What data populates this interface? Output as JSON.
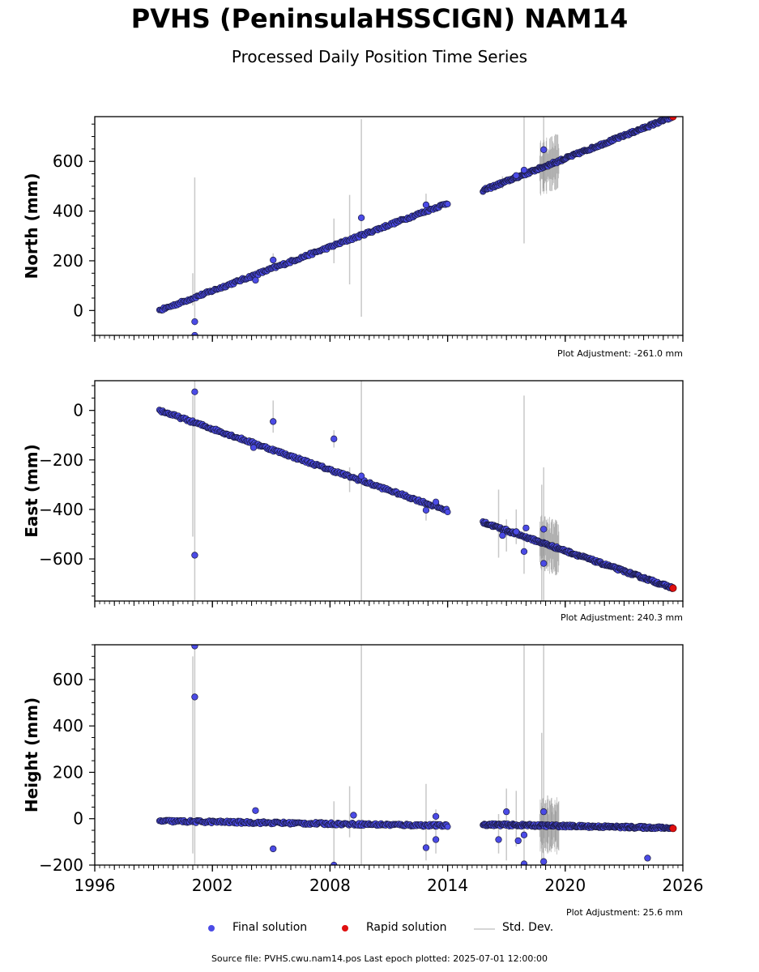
{
  "title": "PVHS (PeninsulaHSSCIGN) NAM14",
  "subtitle": "Processed Daily Position Time Series",
  "source_note": "Source file: PVHS.cwu.nam14.pos  Last epoch plotted: 2025-07-01 12:00:00",
  "legend": {
    "final": "Final solution",
    "rapid": "Rapid solution",
    "std": "Std. Dev."
  },
  "colors": {
    "final": "#4b4be6",
    "final_edge": "#1a1a40",
    "rapid": "#e01010",
    "std": "#c8c8c8"
  },
  "chart_data": [
    {
      "type": "scatter",
      "ylabel": "North (mm)",
      "adjustment": "Plot Adjustment: -261.0 mm",
      "xlim": [
        1996,
        2026
      ],
      "ylim": [
        -100,
        780
      ],
      "yticks": [
        0,
        200,
        400,
        600
      ],
      "xticks": [
        1996,
        2002,
        2008,
        2014,
        2020,
        2026
      ],
      "show_xticklabels": false,
      "segments": [
        {
          "x": [
            1999.3,
            2014.0
          ],
          "y": [
            0,
            432
          ]
        },
        {
          "x": [
            2015.8,
            2025.5
          ],
          "y": [
            483,
            780
          ]
        }
      ],
      "outliers": [
        {
          "x": 2001.1,
          "y": -45
        },
        {
          "x": 2001.1,
          "y": -100
        },
        {
          "x": 2004.2,
          "y": 122
        },
        {
          "x": 2005.1,
          "y": 203
        },
        {
          "x": 2009.6,
          "y": 373
        },
        {
          "x": 2012.9,
          "y": 425
        },
        {
          "x": 2017.9,
          "y": 565
        },
        {
          "x": 2018.9,
          "y": 647
        },
        {
          "x": 2017.5,
          "y": 543
        }
      ],
      "errorbars": [
        {
          "x": 2001.1,
          "lo": -60,
          "hi": 535
        },
        {
          "x": 2001.0,
          "lo": 20,
          "hi": 150
        },
        {
          "x": 2008.2,
          "lo": 190,
          "hi": 370
        },
        {
          "x": 2009.0,
          "lo": 105,
          "hi": 465
        },
        {
          "x": 2009.6,
          "lo": -25,
          "hi": 770
        },
        {
          "x": 2005.1,
          "lo": 175,
          "hi": 230
        },
        {
          "x": 2012.9,
          "lo": 380,
          "hi": 470
        },
        {
          "x": 2017.9,
          "lo": 270,
          "hi": 780
        },
        {
          "x": 2018.9,
          "lo": 480,
          "hi": 780
        },
        {
          "x": 2016.8,
          "lo": 490,
          "hi": 540
        }
      ],
      "rapid": [
        {
          "x": 2025.5,
          "y": 780
        }
      ]
    },
    {
      "type": "scatter",
      "ylabel": "East (mm)",
      "adjustment": "Plot Adjustment: 240.3 mm",
      "xlim": [
        1996,
        2026
      ],
      "ylim": [
        -770,
        120
      ],
      "yticks": [
        0,
        -200,
        -400,
        -600
      ],
      "xticks": [
        1996,
        2002,
        2008,
        2014,
        2020,
        2026
      ],
      "show_xticklabels": false,
      "segments": [
        {
          "x": [
            1999.3,
            2014.0
          ],
          "y": [
            0,
            -405
          ]
        },
        {
          "x": [
            2015.8,
            2025.5
          ],
          "y": [
            -452,
            -718
          ]
        }
      ],
      "outliers": [
        {
          "x": 2001.1,
          "y": 75
        },
        {
          "x": 2001.1,
          "y": -585
        },
        {
          "x": 2005.1,
          "y": -45
        },
        {
          "x": 2008.2,
          "y": -115
        },
        {
          "x": 2009.6,
          "y": -265
        },
        {
          "x": 2012.9,
          "y": -403
        },
        {
          "x": 2013.4,
          "y": -370
        },
        {
          "x": 2016.8,
          "y": -505
        },
        {
          "x": 2017.9,
          "y": -570
        },
        {
          "x": 2018.0,
          "y": -475
        },
        {
          "x": 2018.9,
          "y": -618
        },
        {
          "x": 2018.9,
          "y": -480
        },
        {
          "x": 2017.5,
          "y": -490
        },
        {
          "x": 2004.1,
          "y": -150
        }
      ],
      "errorbars": [
        {
          "x": 2001.1,
          "lo": -770,
          "hi": 120
        },
        {
          "x": 2001.0,
          "lo": -510,
          "hi": 60
        },
        {
          "x": 2005.1,
          "lo": -90,
          "hi": 40
        },
        {
          "x": 2008.2,
          "lo": -150,
          "hi": -80
        },
        {
          "x": 2009.0,
          "lo": -330,
          "hi": -230
        },
        {
          "x": 2009.6,
          "lo": -770,
          "hi": 120
        },
        {
          "x": 2012.9,
          "lo": -445,
          "hi": -360
        },
        {
          "x": 2016.6,
          "lo": -595,
          "hi": -320
        },
        {
          "x": 2017.0,
          "lo": -570,
          "hi": -440
        },
        {
          "x": 2017.5,
          "lo": -540,
          "hi": -400
        },
        {
          "x": 2017.9,
          "lo": -660,
          "hi": 60
        },
        {
          "x": 2018.9,
          "lo": -770,
          "hi": -230
        },
        {
          "x": 2018.8,
          "lo": -770,
          "hi": -300
        }
      ],
      "rapid": [
        {
          "x": 2025.5,
          "y": -718
        }
      ]
    },
    {
      "type": "scatter",
      "ylabel": "Height (mm)",
      "adjustment": "Plot Adjustment: 25.6 mm",
      "xlim": [
        1996,
        2026
      ],
      "ylim": [
        -200,
        750
      ],
      "yticks": [
        -200,
        0,
        200,
        400,
        600
      ],
      "xticks": [
        1996,
        2002,
        2008,
        2014,
        2020,
        2026
      ],
      "show_xticklabels": true,
      "segments": [
        {
          "x": [
            1999.3,
            2014.0
          ],
          "y": [
            -10,
            -30
          ]
        },
        {
          "x": [
            2015.8,
            2025.5
          ],
          "y": [
            -25,
            -40
          ]
        }
      ],
      "outliers": [
        {
          "x": 2001.1,
          "y": 745
        },
        {
          "x": 2001.1,
          "y": 525
        },
        {
          "x": 2004.2,
          "y": 35
        },
        {
          "x": 2005.1,
          "y": -130
        },
        {
          "x": 2008.2,
          "y": -200
        },
        {
          "x": 2009.2,
          "y": 15
        },
        {
          "x": 2012.9,
          "y": -125
        },
        {
          "x": 2013.4,
          "y": 10
        },
        {
          "x": 2013.4,
          "y": -90
        },
        {
          "x": 2016.6,
          "y": -90
        },
        {
          "x": 2017.0,
          "y": 30
        },
        {
          "x": 2017.9,
          "y": -195
        },
        {
          "x": 2017.9,
          "y": -70
        },
        {
          "x": 2018.9,
          "y": 30
        },
        {
          "x": 2018.9,
          "y": -185
        },
        {
          "x": 2024.2,
          "y": -170
        },
        {
          "x": 2017.6,
          "y": -95
        }
      ],
      "errorbars": [
        {
          "x": 2001.1,
          "lo": -200,
          "hi": 750
        },
        {
          "x": 2001.0,
          "lo": -150,
          "hi": 700
        },
        {
          "x": 2008.2,
          "lo": -200,
          "hi": 75
        },
        {
          "x": 2009.0,
          "lo": -80,
          "hi": 140
        },
        {
          "x": 2009.6,
          "lo": -200,
          "hi": 750
        },
        {
          "x": 2012.9,
          "lo": -180,
          "hi": 150
        },
        {
          "x": 2013.4,
          "lo": -150,
          "hi": 40
        },
        {
          "x": 2016.6,
          "lo": -150,
          "hi": 20
        },
        {
          "x": 2017.0,
          "lo": -180,
          "hi": 130
        },
        {
          "x": 2017.5,
          "lo": -120,
          "hi": 120
        },
        {
          "x": 2017.9,
          "lo": -200,
          "hi": 750
        },
        {
          "x": 2018.9,
          "lo": -200,
          "hi": 750
        },
        {
          "x": 2018.8,
          "lo": -200,
          "hi": 370
        },
        {
          "x": 2019.1,
          "lo": -150,
          "hi": 100
        },
        {
          "x": 2019.3,
          "lo": -130,
          "hi": 90
        },
        {
          "x": 2019.5,
          "lo": -100,
          "hi": 60
        }
      ],
      "rapid": [
        {
          "x": 2025.5,
          "y": -42
        }
      ]
    }
  ]
}
